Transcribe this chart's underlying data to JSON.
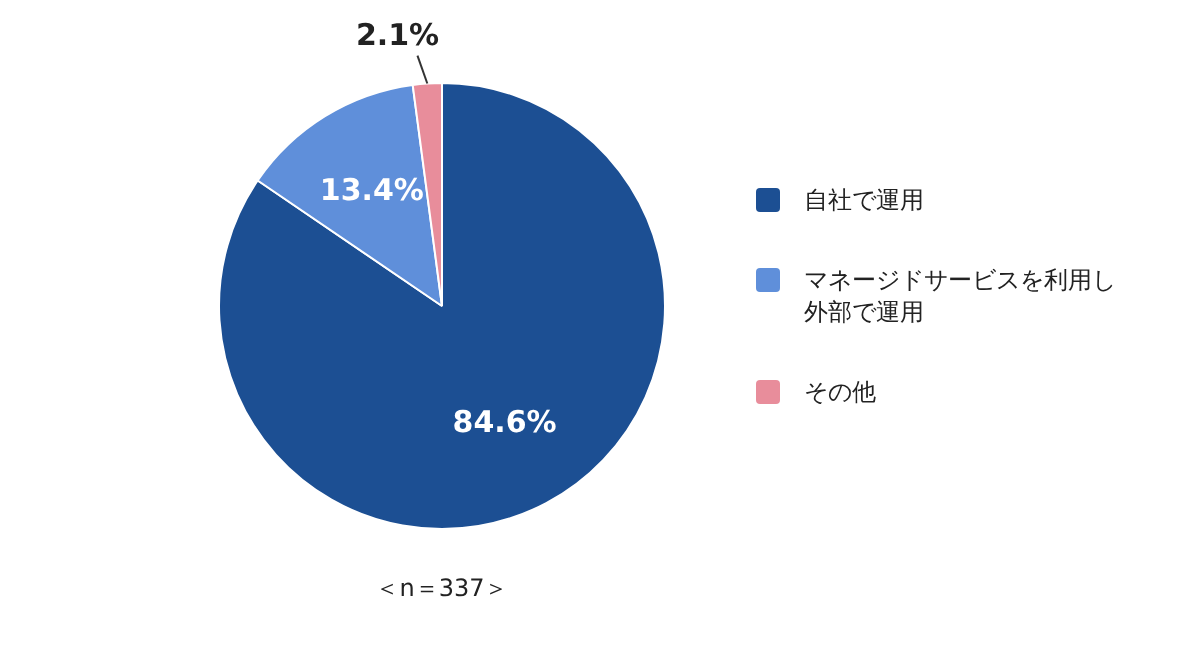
{
  "chart_data": {
    "type": "pie",
    "categories": [
      "自社で運用",
      "マネージドサービスを利用し外部で運用",
      "その他"
    ],
    "values": [
      84.6,
      13.4,
      2.1
    ],
    "colors": [
      "#1c4f93",
      "#5f8fda",
      "#e88d9b"
    ],
    "value_labels": [
      "84.6%",
      "13.4%",
      "2.1%"
    ],
    "legend": "right",
    "annotations": [
      "＜n＝337＞"
    ]
  }
}
